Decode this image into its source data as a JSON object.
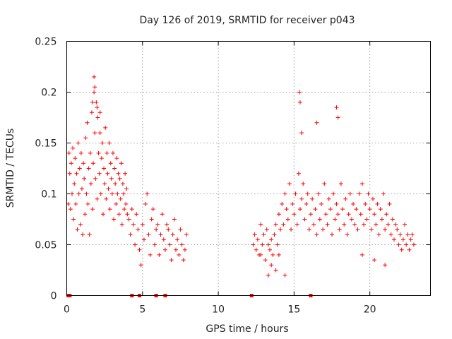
{
  "chart_data": {
    "type": "scatter",
    "title": "Day 126 of 2019, SRMTID for receiver p043",
    "xlabel": "GPS time / hours",
    "ylabel": "SRMTID / TECUs",
    "xlim": [
      0,
      24
    ],
    "ylim": [
      0,
      0.25
    ],
    "xticks": [
      0,
      5,
      10,
      15,
      20
    ],
    "xtick_labels": [
      "0",
      "5",
      "10",
      "15",
      "20"
    ],
    "yticks": [
      0,
      0.05,
      0.1,
      0.15,
      0.2,
      0.25
    ],
    "ytick_labels": [
      "0",
      "0.05",
      "0.1",
      "0.15",
      "0.2",
      "0.25"
    ],
    "grid": true,
    "marker": "+",
    "color": "#ff0000",
    "zero_markers_x": [
      0.1,
      0.2,
      4.3,
      4.8,
      5.9,
      6.5,
      12.2,
      16.1
    ],
    "series": [
      {
        "name": "SRMTID",
        "x": [
          0.1,
          0.15,
          0.2,
          0.25,
          0.3,
          0.35,
          0.4,
          0.45,
          0.5,
          0.55,
          0.6,
          0.65,
          0.7,
          0.75,
          0.8,
          0.85,
          0.9,
          0.95,
          1.0,
          1.05,
          1.1,
          1.15,
          1.2,
          1.25,
          1.3,
          1.35,
          1.4,
          1.45,
          1.5,
          1.55,
          1.6,
          1.65,
          1.7,
          1.75,
          1.8,
          1.85,
          1.9,
          1.95,
          2.0,
          2.05,
          2.1,
          2.15,
          2.2,
          2.25,
          2.3,
          2.35,
          2.4,
          2.45,
          2.5,
          2.55,
          2.6,
          2.65,
          2.7,
          2.75,
          2.8,
          2.85,
          2.9,
          2.95,
          3.0,
          3.05,
          3.1,
          3.15,
          3.2,
          3.25,
          3.3,
          3.35,
          3.4,
          3.45,
          3.5,
          3.55,
          3.6,
          3.65,
          3.7,
          3.75,
          3.8,
          3.85,
          3.9,
          3.95,
          4.0,
          4.1,
          4.2,
          4.3,
          4.4,
          4.5,
          4.6,
          4.7,
          4.8,
          4.9,
          5.0,
          5.1,
          5.2,
          5.3,
          5.4,
          5.5,
          5.6,
          5.7,
          5.8,
          5.9,
          6.0,
          6.1,
          6.2,
          6.3,
          6.4,
          6.5,
          6.6,
          6.7,
          6.8,
          6.9,
          7.0,
          7.1,
          7.2,
          7.3,
          7.4,
          7.5,
          7.6,
          7.7,
          7.8,
          7.9,
          12.3,
          12.4,
          12.5,
          12.6,
          12.7,
          12.8,
          12.9,
          13.0,
          13.1,
          13.2,
          13.3,
          13.4,
          13.5,
          13.6,
          13.7,
          13.8,
          13.9,
          14.0,
          14.1,
          14.2,
          14.3,
          14.4,
          14.5,
          14.6,
          14.7,
          14.8,
          14.9,
          15.0,
          15.1,
          15.2,
          15.3,
          15.4,
          15.5,
          15.6,
          15.7,
          15.8,
          15.9,
          16.0,
          16.1,
          16.2,
          16.3,
          16.4,
          16.5,
          16.6,
          16.7,
          16.8,
          16.9,
          17.0,
          17.1,
          17.2,
          17.3,
          17.4,
          17.5,
          17.6,
          17.7,
          17.8,
          17.9,
          18.0,
          18.1,
          18.2,
          18.3,
          18.4,
          18.5,
          18.6,
          18.7,
          18.8,
          18.9,
          19.0,
          19.1,
          19.2,
          19.3,
          19.4,
          19.5,
          19.6,
          19.7,
          19.8,
          19.9,
          20.0,
          20.1,
          20.2,
          20.3,
          20.4,
          20.5,
          20.6,
          20.7,
          20.8,
          20.9,
          21.0,
          21.1,
          21.2,
          21.3,
          21.4,
          21.5,
          21.6,
          21.7,
          21.8,
          21.9,
          22.0,
          22.1,
          22.2,
          22.3,
          22.4,
          22.5,
          22.6,
          22.7,
          22.8,
          22.9,
          1.8,
          1.85,
          1.7,
          2.0,
          2.2,
          15.35,
          15.4,
          15.5,
          17.8,
          17.9,
          16.5,
          12.8,
          13.5,
          14.0,
          19.5,
          20.3,
          21.0,
          13.3,
          13.8,
          14.4
        ],
        "y": [
          0.09,
          0.14,
          0.12,
          0.085,
          0.13,
          0.1,
          0.145,
          0.075,
          0.11,
          0.135,
          0.09,
          0.12,
          0.065,
          0.15,
          0.1,
          0.125,
          0.07,
          0.14,
          0.105,
          0.06,
          0.13,
          0.115,
          0.08,
          0.155,
          0.1,
          0.17,
          0.09,
          0.125,
          0.06,
          0.14,
          0.11,
          0.18,
          0.085,
          0.13,
          0.2,
          0.16,
          0.115,
          0.19,
          0.095,
          0.175,
          0.14,
          0.12,
          0.16,
          0.1,
          0.135,
          0.15,
          0.08,
          0.125,
          0.11,
          0.165,
          0.095,
          0.14,
          0.12,
          0.105,
          0.15,
          0.085,
          0.13,
          0.115,
          0.1,
          0.14,
          0.075,
          0.125,
          0.11,
          0.09,
          0.135,
          0.1,
          0.12,
          0.08,
          0.115,
          0.095,
          0.13,
          0.07,
          0.11,
          0.1,
          0.085,
          0.12,
          0.09,
          0.105,
          0.08,
          0.075,
          0.06,
          0.085,
          0.07,
          0.05,
          0.08,
          0.065,
          0.045,
          0.03,
          0.07,
          0.055,
          0.09,
          0.1,
          0.06,
          0.04,
          0.075,
          0.085,
          0.05,
          0.065,
          0.07,
          0.04,
          0.06,
          0.08,
          0.055,
          0.045,
          0.07,
          0.065,
          0.05,
          0.035,
          0.06,
          0.075,
          0.045,
          0.055,
          0.04,
          0.065,
          0.05,
          0.035,
          0.045,
          0.06,
          0.05,
          0.06,
          0.045,
          0.055,
          0.04,
          0.07,
          0.05,
          0.06,
          0.035,
          0.065,
          0.05,
          0.045,
          0.055,
          0.04,
          0.06,
          0.07,
          0.05,
          0.08,
          0.065,
          0.09,
          0.07,
          0.1,
          0.085,
          0.075,
          0.11,
          0.065,
          0.09,
          0.08,
          0.1,
          0.07,
          0.12,
          0.085,
          0.095,
          0.11,
          0.075,
          0.09,
          0.1,
          0.065,
          0.08,
          0.095,
          0.07,
          0.085,
          0.06,
          0.1,
          0.075,
          0.09,
          0.065,
          0.11,
          0.08,
          0.07,
          0.095,
          0.085,
          0.06,
          0.1,
          0.075,
          0.09,
          0.08,
          0.065,
          0.11,
          0.085,
          0.07,
          0.095,
          0.06,
          0.08,
          0.1,
          0.075,
          0.09,
          0.07,
          0.085,
          0.065,
          0.1,
          0.08,
          0.11,
          0.07,
          0.09,
          0.075,
          0.1,
          0.085,
          0.065,
          0.095,
          0.08,
          0.07,
          0.09,
          0.06,
          0.085,
          0.075,
          0.1,
          0.065,
          0.08,
          0.07,
          0.09,
          0.06,
          0.075,
          0.055,
          0.07,
          0.065,
          0.05,
          0.06,
          0.045,
          0.055,
          0.07,
          0.05,
          0.06,
          0.045,
          0.055,
          0.06,
          0.05,
          0.215,
          0.205,
          0.19,
          0.185,
          0.18,
          0.2,
          0.19,
          0.16,
          0.185,
          0.175,
          0.17,
          0.04,
          0.03,
          0.04,
          0.04,
          0.035,
          0.03,
          0.02,
          0.025,
          0.02
        ]
      }
    ]
  }
}
